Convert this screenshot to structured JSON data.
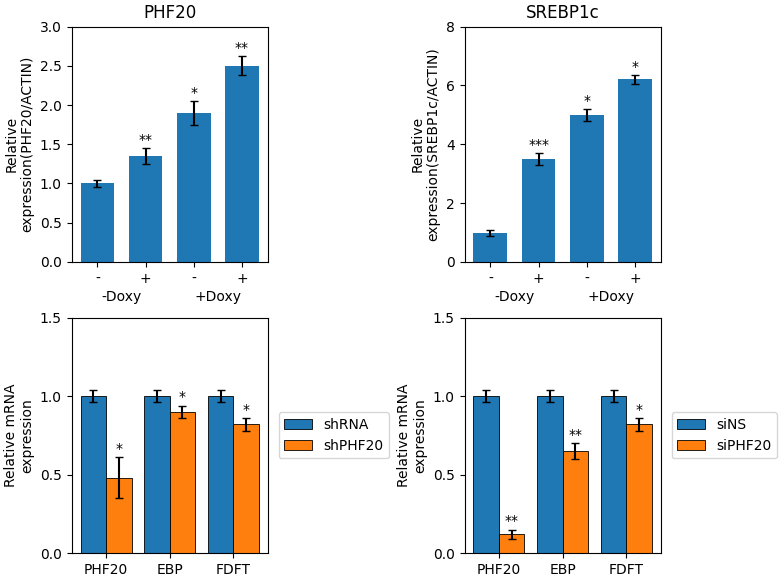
{
  "chart_data": [
    {
      "type": "bar",
      "title": "PHF20",
      "ylabel": "Relative\nexpression(PHF20/ACTIN)",
      "categories": [
        "-",
        "+",
        "-",
        "+"
      ],
      "groups": [
        "-Doxy",
        "+Doxy"
      ],
      "values": [
        1.0,
        1.35,
        1.9,
        2.5
      ],
      "errors": [
        0.05,
        0.1,
        0.15,
        0.12
      ],
      "annotations": [
        null,
        "**",
        "*",
        "**"
      ],
      "ylim": [
        0,
        3
      ],
      "yticks": [
        {
          "value": 0,
          "label": "0.0"
        },
        0.5,
        1.0,
        1.5,
        2.0,
        2.5,
        3.0
      ]
    },
    {
      "type": "bar",
      "title": "SREBP1c",
      "ylabel": "Relative\nexpression(SREBP1c/ACTIN)",
      "categories": [
        "-",
        "+",
        "-",
        "+"
      ],
      "groups": [
        "-Doxy",
        "+Doxy"
      ],
      "values": [
        1.0,
        3.5,
        5.0,
        6.2
      ],
      "errors": [
        0.1,
        0.2,
        0.2,
        0.15
      ],
      "annotations": [
        null,
        "***",
        "*",
        "*"
      ],
      "ylim": [
        0,
        8
      ],
      "yticks": [
        0,
        2,
        4,
        6,
        8
      ]
    },
    {
      "type": "bar",
      "ylabel": "Relative mRNA\nexpression",
      "categories": [
        "PHF20",
        "EBP",
        "FDFT"
      ],
      "series": [
        {
          "name": "shRNA",
          "values": [
            1.0,
            1.0,
            1.0
          ],
          "errors": [
            0.04,
            0.04,
            0.04
          ],
          "annotations": [
            null,
            null,
            null
          ]
        },
        {
          "name": "shPHF20",
          "values": [
            0.48,
            0.9,
            0.82
          ],
          "errors": [
            0.13,
            0.04,
            0.04
          ],
          "annotations": [
            "*",
            "*",
            "*"
          ]
        }
      ],
      "legend": "right",
      "ylim": [
        0,
        1.5
      ],
      "yticks": [
        {
          "value": 0,
          "label": "0.0"
        },
        0.5,
        1.0,
        1.5
      ]
    },
    {
      "type": "bar",
      "ylabel": "Relative mRNA\nexpression",
      "categories": [
        "PHF20",
        "EBP",
        "FDFT"
      ],
      "series": [
        {
          "name": "siNS",
          "values": [
            1.0,
            1.0,
            1.0
          ],
          "errors": [
            0.04,
            0.04,
            0.04
          ],
          "annotations": [
            null,
            null,
            null
          ]
        },
        {
          "name": "siPHF20",
          "values": [
            0.12,
            0.65,
            0.82
          ],
          "errors": [
            0.03,
            0.05,
            0.04
          ],
          "annotations": [
            "**",
            "**",
            "*"
          ]
        }
      ],
      "legend": "right",
      "ylim": [
        0,
        1.5
      ],
      "yticks": [
        {
          "value": 0,
          "label": "0.0"
        },
        0.5,
        1.0,
        1.5
      ]
    }
  ]
}
